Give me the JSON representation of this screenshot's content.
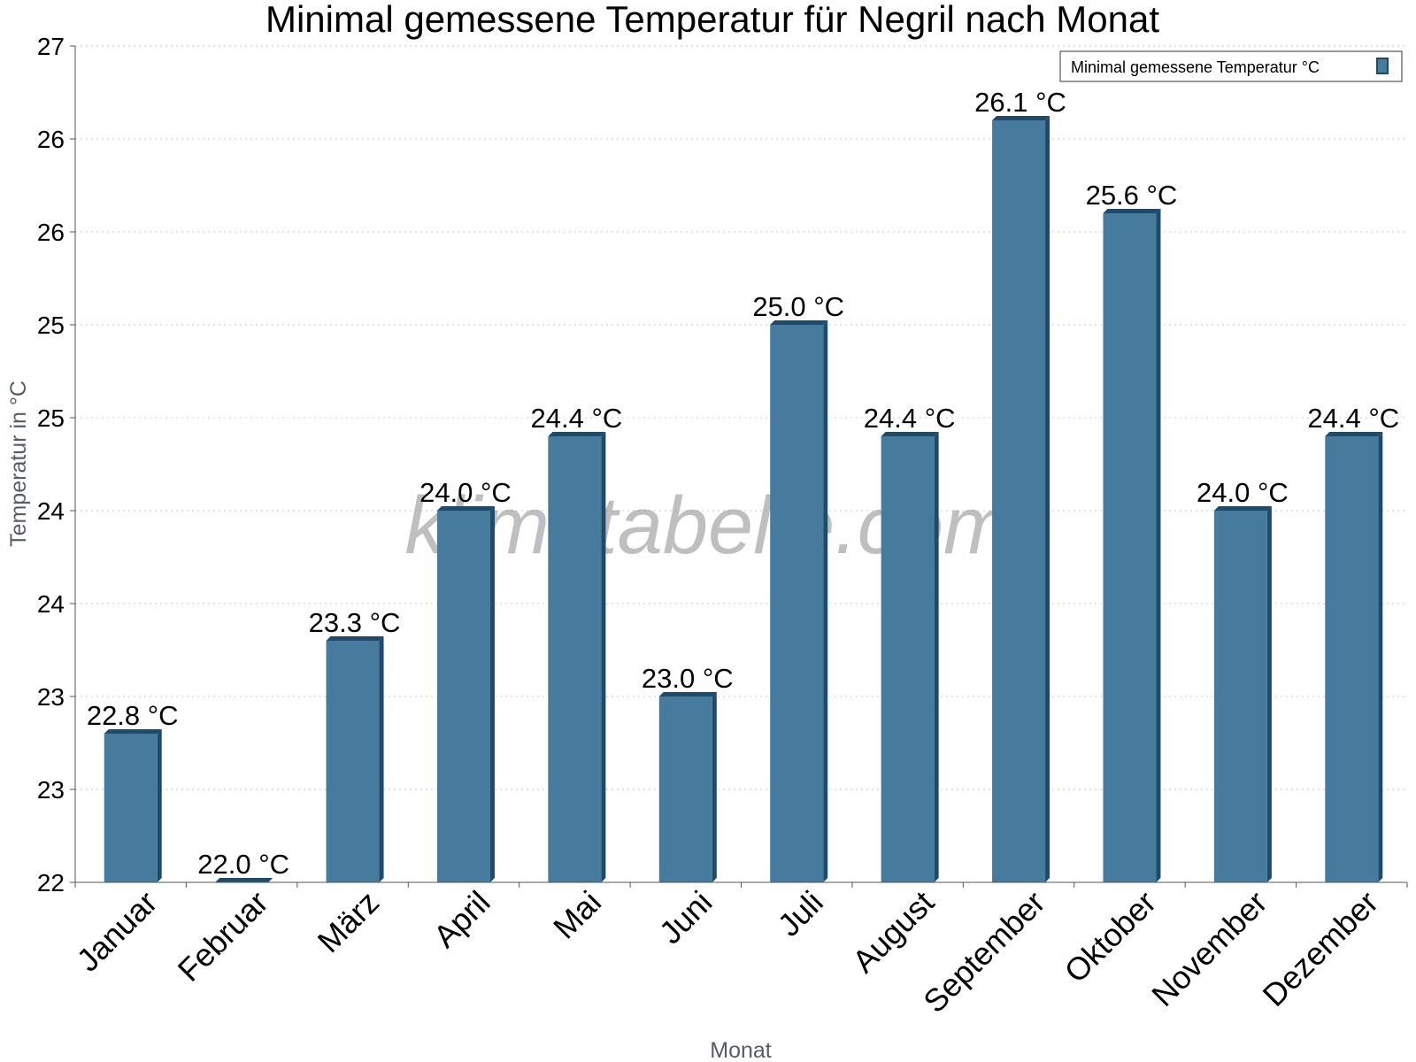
{
  "chart_data": {
    "type": "bar",
    "title": "Minimal gemessene Temperatur für Negril nach Monat",
    "xlabel": "Monat",
    "ylabel": "Temperatur in °C",
    "categories": [
      "Januar",
      "Februar",
      "März",
      "April",
      "Mai",
      "Juni",
      "Juli",
      "August",
      "September",
      "Oktober",
      "November",
      "Dezember"
    ],
    "series": [
      {
        "name": "Minimal gemessene Temperatur °C",
        "values": [
          22.8,
          22.0,
          23.3,
          24.0,
          24.4,
          23.0,
          25.0,
          24.4,
          26.1,
          25.6,
          24.0,
          24.4
        ],
        "labels": [
          "22.8 °C",
          "22.0 °C",
          "23.3 °C",
          "24.0 °C",
          "24.4 °C",
          "23.0 °C",
          "25.0 °C",
          "24.4 °C",
          "26.1 °C",
          "25.6 °C",
          "24.0 °C",
          "24.4 °C"
        ]
      }
    ],
    "ylim": [
      22,
      26.5
    ],
    "yticks": [
      22,
      22.5,
      23,
      23.5,
      24,
      24.5,
      25,
      25.5,
      26,
      26.5
    ],
    "ytick_labels": [
      "22",
      "23",
      "23",
      "24",
      "24",
      "25",
      "25",
      "26",
      "26",
      "27"
    ],
    "grid": true,
    "legend_position": "top-right",
    "colors": {
      "bar_face": "#467b9e",
      "bar_side": "#1e4a6b",
      "bar_top": "#1e4a6b"
    }
  },
  "watermark": "klimatabelle.com"
}
